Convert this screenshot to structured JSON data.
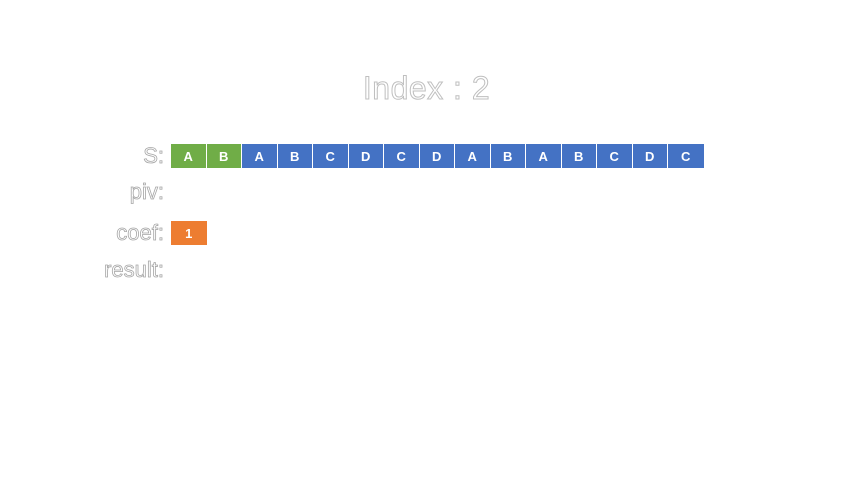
{
  "title": "Index : 2",
  "colors": {
    "highlight": "#70ad47",
    "default": "#4472c4",
    "coef": "#ed7d31"
  },
  "rows": {
    "s": {
      "label": "S:",
      "cells": [
        {
          "char": "A",
          "state": "highlight"
        },
        {
          "char": "B",
          "state": "highlight"
        },
        {
          "char": "A",
          "state": "default"
        },
        {
          "char": "B",
          "state": "default"
        },
        {
          "char": "C",
          "state": "default"
        },
        {
          "char": "D",
          "state": "default"
        },
        {
          "char": "C",
          "state": "default"
        },
        {
          "char": "D",
          "state": "default"
        },
        {
          "char": "A",
          "state": "default"
        },
        {
          "char": "B",
          "state": "default"
        },
        {
          "char": "A",
          "state": "default"
        },
        {
          "char": "B",
          "state": "default"
        },
        {
          "char": "C",
          "state": "default"
        },
        {
          "char": "D",
          "state": "default"
        },
        {
          "char": "C",
          "state": "default"
        }
      ]
    },
    "piv": {
      "label": "piv:",
      "cells": []
    },
    "coef": {
      "label": "coef:",
      "cells": [
        {
          "char": "1",
          "state": "coef"
        }
      ]
    },
    "result": {
      "label": "result:",
      "cells": []
    }
  }
}
